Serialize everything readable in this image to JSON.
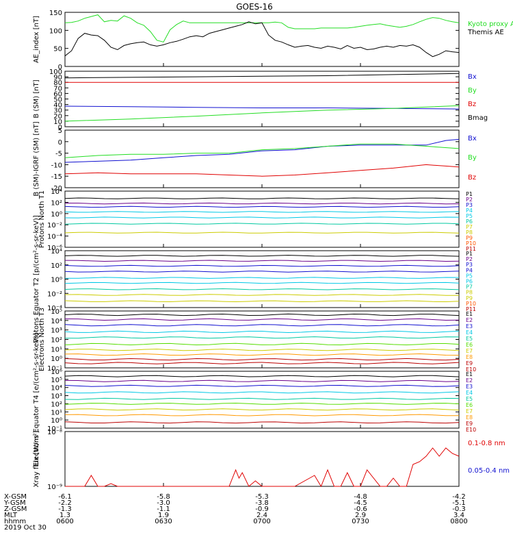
{
  "title": "GOES-16",
  "colors": {
    "black": "#000000",
    "red": "#e00000",
    "green": "#22dd22",
    "blue": "#1010d0",
    "navy": "#00007a",
    "magenta": "#6a008a",
    "purple": "#7a00aa",
    "cyan": "#00c8e6",
    "teal": "#00c8a0",
    "lime": "#55dd00",
    "yellow": "#cccc00",
    "orange": "#ff9900",
    "orange2": "#ff5500",
    "darkred": "#bb0000"
  },
  "chart_data": [
    {
      "type": "line",
      "ylabel": "AE_index [nT]",
      "ylim": [
        0,
        155
      ],
      "yticks": [
        "0",
        "50",
        "100",
        "150"
      ],
      "series": [
        {
          "name": "Kyoto proxy AE",
          "color": "#22dd22",
          "x": [
            0,
            2,
            4,
            6,
            8,
            10,
            12,
            14,
            16,
            18,
            20,
            22,
            24,
            26,
            28,
            30,
            32,
            34,
            36,
            38,
            40,
            42,
            44,
            46,
            48,
            50,
            52,
            54,
            56,
            58,
            60,
            62,
            64,
            66,
            68,
            70,
            72,
            74,
            76,
            78,
            80,
            82,
            84,
            86,
            88,
            90,
            92,
            94,
            96,
            98,
            100,
            102,
            104,
            106,
            108,
            110,
            112,
            114,
            116,
            118,
            120
          ],
          "y": [
            125,
            126,
            130,
            138,
            143,
            148,
            128,
            132,
            130,
            145,
            138,
            125,
            118,
            100,
            75,
            70,
            105,
            120,
            130,
            125,
            125,
            125,
            125,
            125,
            125,
            125,
            125,
            125,
            125,
            125,
            125,
            125,
            127,
            125,
            112,
            108,
            108,
            108,
            108,
            110,
            110,
            110,
            110,
            110,
            112,
            115,
            118,
            120,
            122,
            118,
            115,
            112,
            115,
            120,
            128,
            135,
            140,
            138,
            132,
            128,
            125
          ]
        },
        {
          "name": "Themis AE",
          "color": "#000000",
          "x": [
            0,
            2,
            4,
            6,
            8,
            10,
            12,
            14,
            16,
            18,
            20,
            22,
            24,
            26,
            28,
            30,
            32,
            34,
            36,
            38,
            40,
            42,
            44,
            46,
            48,
            50,
            52,
            54,
            56,
            58,
            60,
            62,
            64,
            66,
            68,
            70,
            72,
            74,
            76,
            78,
            80,
            82,
            84,
            86,
            88,
            90,
            92,
            94,
            96,
            98,
            100,
            102,
            104,
            106,
            108,
            110,
            112,
            114,
            116,
            118,
            120
          ],
          "y": [
            30,
            45,
            80,
            95,
            90,
            88,
            75,
            55,
            48,
            60,
            65,
            68,
            70,
            62,
            58,
            62,
            68,
            72,
            78,
            85,
            88,
            85,
            95,
            100,
            105,
            110,
            115,
            120,
            128,
            122,
            125,
            90,
            75,
            70,
            62,
            55,
            58,
            60,
            55,
            52,
            58,
            55,
            50,
            60,
            52,
            55,
            48,
            50,
            55,
            58,
            55,
            60,
            58,
            62,
            55,
            40,
            28,
            35,
            45,
            42,
            40
          ]
        }
      ]
    },
    {
      "type": "line",
      "ylabel": "B (SM) [nT]",
      "ylim": [
        0,
        100
      ],
      "yticks": [
        "0",
        "10",
        "20",
        "30",
        "40",
        "50",
        "60",
        "70",
        "80",
        "90",
        "100"
      ],
      "series": [
        {
          "name": "Bx",
          "color": "#1010d0",
          "x": [
            0,
            20,
            40,
            60,
            80,
            100,
            120
          ],
          "y": [
            37,
            36,
            35,
            34,
            34,
            33,
            32
          ]
        },
        {
          "name": "By",
          "color": "#22dd22",
          "x": [
            0,
            20,
            40,
            60,
            80,
            100,
            120
          ],
          "y": [
            10,
            14,
            19,
            25,
            30,
            33,
            38
          ]
        },
        {
          "name": "Bz",
          "color": "#e00000",
          "x": [
            0,
            20,
            40,
            60,
            80,
            100,
            120
          ],
          "y": [
            80,
            80,
            80,
            80,
            80,
            80,
            80
          ]
        },
        {
          "name": "Bmag",
          "color": "#000000",
          "x": [
            0,
            20,
            40,
            60,
            80,
            100,
            120
          ],
          "y": [
            88,
            89,
            90,
            91,
            92,
            94,
            96
          ]
        }
      ]
    },
    {
      "type": "line",
      "ylabel": "B (SM)-IGRF (SM) [nT]",
      "ylim": [
        -20,
        5
      ],
      "yticks": [
        "-20",
        "-15",
        "-10",
        "-5",
        "0",
        "5"
      ],
      "series": [
        {
          "name": "Bx",
          "color": "#1010d0",
          "x": [
            0,
            10,
            20,
            30,
            40,
            50,
            60,
            70,
            80,
            90,
            100,
            110,
            116,
            120
          ],
          "y": [
            -9,
            -8.5,
            -8,
            -7,
            -6,
            -5.5,
            -4,
            -3.5,
            -2,
            -1.5,
            -1.5,
            -1.5,
            0.5,
            1
          ]
        },
        {
          "name": "By",
          "color": "#22dd22",
          "x": [
            0,
            10,
            20,
            30,
            40,
            50,
            60,
            70,
            80,
            90,
            100,
            110,
            120
          ],
          "y": [
            -7,
            -6,
            -5.5,
            -5.5,
            -5,
            -5,
            -3.5,
            -3,
            -2,
            -1,
            -1,
            -2,
            -3
          ]
        },
        {
          "name": "Bz",
          "color": "#e00000",
          "x": [
            0,
            10,
            20,
            30,
            40,
            50,
            60,
            70,
            80,
            90,
            100,
            110,
            120
          ],
          "y": [
            -14,
            -13.5,
            -14,
            -14,
            -14,
            -14.5,
            -15,
            -14.5,
            -13.5,
            -12.5,
            -11.5,
            -10,
            -11
          ]
        }
      ]
    },
    {
      "type": "line",
      "ylabel": "Protons North T1",
      "yscale": "log",
      "ylim": [
        -6,
        4
      ],
      "yticks": [
        "10⁻⁶",
        "10⁻⁴",
        "10⁻²",
        "10⁰",
        "10²",
        "10⁴"
      ],
      "series_labels": [
        "P1",
        "P2",
        "P3",
        "P4",
        "P5",
        "P6",
        "P7",
        "P8",
        "P9",
        "P10",
        "P11"
      ],
      "series_colors": [
        "#000000",
        "#6a008a",
        "#1010d0",
        "#00c8e6",
        "#00c8e6",
        "#00c8a0",
        "#cccc00",
        "#cccc00",
        "#ff5500",
        "#ff5500",
        "#bb0000"
      ],
      "levels": [
        2.7,
        1.8,
        1.2,
        0.3,
        -0.7,
        -1.8,
        -3.4
      ]
    },
    {
      "type": "line",
      "ylabel": "Protons Equator T2 [p/(cm²-s-sr-keV)]",
      "yscale": "log",
      "ylim": [
        -5,
        4
      ],
      "yticks": [
        "10⁻⁴",
        "10⁻²",
        "10⁰",
        "10²",
        "10⁴"
      ],
      "series_labels": [
        "P1",
        "P2",
        "P3",
        "P4",
        "P5",
        "P6",
        "P7",
        "P8",
        "P9",
        "P10",
        "P11"
      ],
      "series_colors": [
        "#000000",
        "#6a008a",
        "#1010d0",
        "#1010d0",
        "#00c8e6",
        "#00c8e6",
        "#00c8a0",
        "#cccc00",
        "#cccc00",
        "#ff5500",
        "#bb0000"
      ],
      "levels": [
        3.2,
        2.4,
        1.6,
        0.7,
        -0.3,
        -1.1,
        -2.1,
        -3.0,
        -4.0
      ]
    },
    {
      "type": "line",
      "ylabel": "Electrons North T3",
      "yscale": "log",
      "ylim": [
        -1,
        5
      ],
      "yticks": [
        "10⁻¹",
        "10⁰",
        "10¹",
        "10²",
        "10³",
        "10⁴",
        "10⁵"
      ],
      "series_labels": [
        "E1",
        "E2",
        "E3",
        "E4",
        "E5",
        "E6",
        "E7",
        "E8",
        "E9",
        "E10"
      ],
      "series_colors": [
        "#000000",
        "#6a008a",
        "#1010d0",
        "#00c8e6",
        "#00c8a0",
        "#55dd00",
        "#cccc00",
        "#ff9900",
        "#bb0000",
        "#bb0000"
      ],
      "levels": [
        4.6,
        4.1,
        3.5,
        2.8,
        2.2,
        1.5,
        0.9,
        0.4,
        -0.1,
        -0.5
      ]
    },
    {
      "type": "line",
      "ylabel": "Electrons Equator T4 [e/(cm²-s-sr-keV)]",
      "yscale": "log",
      "ylim": [
        -1,
        6
      ],
      "yticks": [
        "10⁻¹",
        "10⁰",
        "10¹",
        "10²",
        "10³",
        "10⁴",
        "10⁵",
        "10⁶"
      ],
      "series_labels": [
        "E1",
        "E2",
        "E3",
        "E4",
        "E5",
        "E6",
        "E7",
        "E8",
        "E9",
        "E10"
      ],
      "series_colors": [
        "#000000",
        "#6a008a",
        "#1010d0",
        "#00c8e6",
        "#00c8a0",
        "#55dd00",
        "#cccc00",
        "#ff9900",
        "#bb0000",
        "#bb0000"
      ],
      "levels": [
        5.4,
        4.8,
        4.2,
        3.4,
        2.6,
        2.0,
        1.3,
        0.6,
        -0.3
      ]
    },
    {
      "type": "line",
      "ylabel": "Xray flux [W/m²]",
      "yscale": "log",
      "ylim": [
        -9,
        -8
      ],
      "yticks": [
        "10⁻⁹",
        "10⁻⁸"
      ],
      "series": [
        {
          "name": "0.1-0.8 nm",
          "color": "#e00000",
          "x": [
            0,
            6,
            8,
            10,
            12,
            14,
            16,
            18,
            20,
            40,
            50,
            52,
            53,
            54,
            56,
            58,
            60,
            70,
            76,
            78,
            80,
            82,
            84,
            86,
            88,
            90,
            92,
            96,
            98,
            100,
            102,
            104,
            106,
            108,
            110,
            112,
            114,
            116,
            118,
            120
          ],
          "y": [
            -9,
            -9,
            -8.8,
            -9,
            -9,
            -8.95,
            -9,
            -9,
            -9,
            -9,
            -9,
            -8.7,
            -8.85,
            -8.75,
            -9,
            -8.9,
            -9,
            -9,
            -8.8,
            -9,
            -8.7,
            -9,
            -9,
            -8.75,
            -9,
            -9,
            -8.7,
            -9,
            -9,
            -8.85,
            -9,
            -9,
            -8.6,
            -8.55,
            -8.45,
            -8.3,
            -8.45,
            -8.3,
            -8.4,
            -8.45
          ]
        },
        {
          "name": "0.05-0.4 nm",
          "color": "#1010d0",
          "x": [],
          "y": []
        }
      ]
    }
  ],
  "xaxis": {
    "tick_x": [
      0,
      30,
      60,
      90,
      120
    ],
    "rows": [
      {
        "label": "X-GSM",
        "values": [
          "-6.1",
          "-5.8",
          "-5.3",
          "-4.8",
          "-4.2"
        ]
      },
      {
        "label": "Y-GSM",
        "values": [
          "-2.2",
          "-3.0",
          "-3.8",
          "-4.5",
          "-5.1"
        ]
      },
      {
        "label": "Z-GSM",
        "values": [
          "-1.3",
          "-1.1",
          "-0.9",
          "-0.6",
          "-0.3"
        ]
      },
      {
        "label": "MLT",
        "values": [
          "1.3",
          "1.9",
          "2.4",
          "2.9",
          "3.4"
        ]
      },
      {
        "label": "hhmm",
        "values": [
          "0600",
          "0630",
          "0700",
          "0730",
          "0800"
        ]
      }
    ],
    "date": "2019 Oct 30"
  },
  "panel_legends": [
    [
      "Kyoto proxy AE",
      "Themis AE"
    ],
    [
      "Bx",
      "By",
      "Bz",
      "Bmag"
    ],
    [
      "Bx",
      "By",
      "Bz"
    ],
    [
      "P1",
      "P2",
      "P3",
      "P4",
      "P5",
      "P6",
      "P7",
      "P8",
      "P9",
      "P10",
      "P11"
    ],
    [
      "P1",
      "P2",
      "P3",
      "P4",
      "P5",
      "P6",
      "P7",
      "P8",
      "P9",
      "P10",
      "P11"
    ],
    [
      "E1",
      "E2",
      "E3",
      "E4",
      "E5",
      "E6",
      "E7",
      "E8",
      "E9",
      "E10"
    ],
    [
      "E1",
      "E2",
      "E3",
      "E4",
      "E5",
      "E6",
      "E7",
      "E8",
      "E9",
      "E10"
    ],
    [
      "0.1-0.8 nm",
      "0.05-0.4 nm"
    ]
  ]
}
